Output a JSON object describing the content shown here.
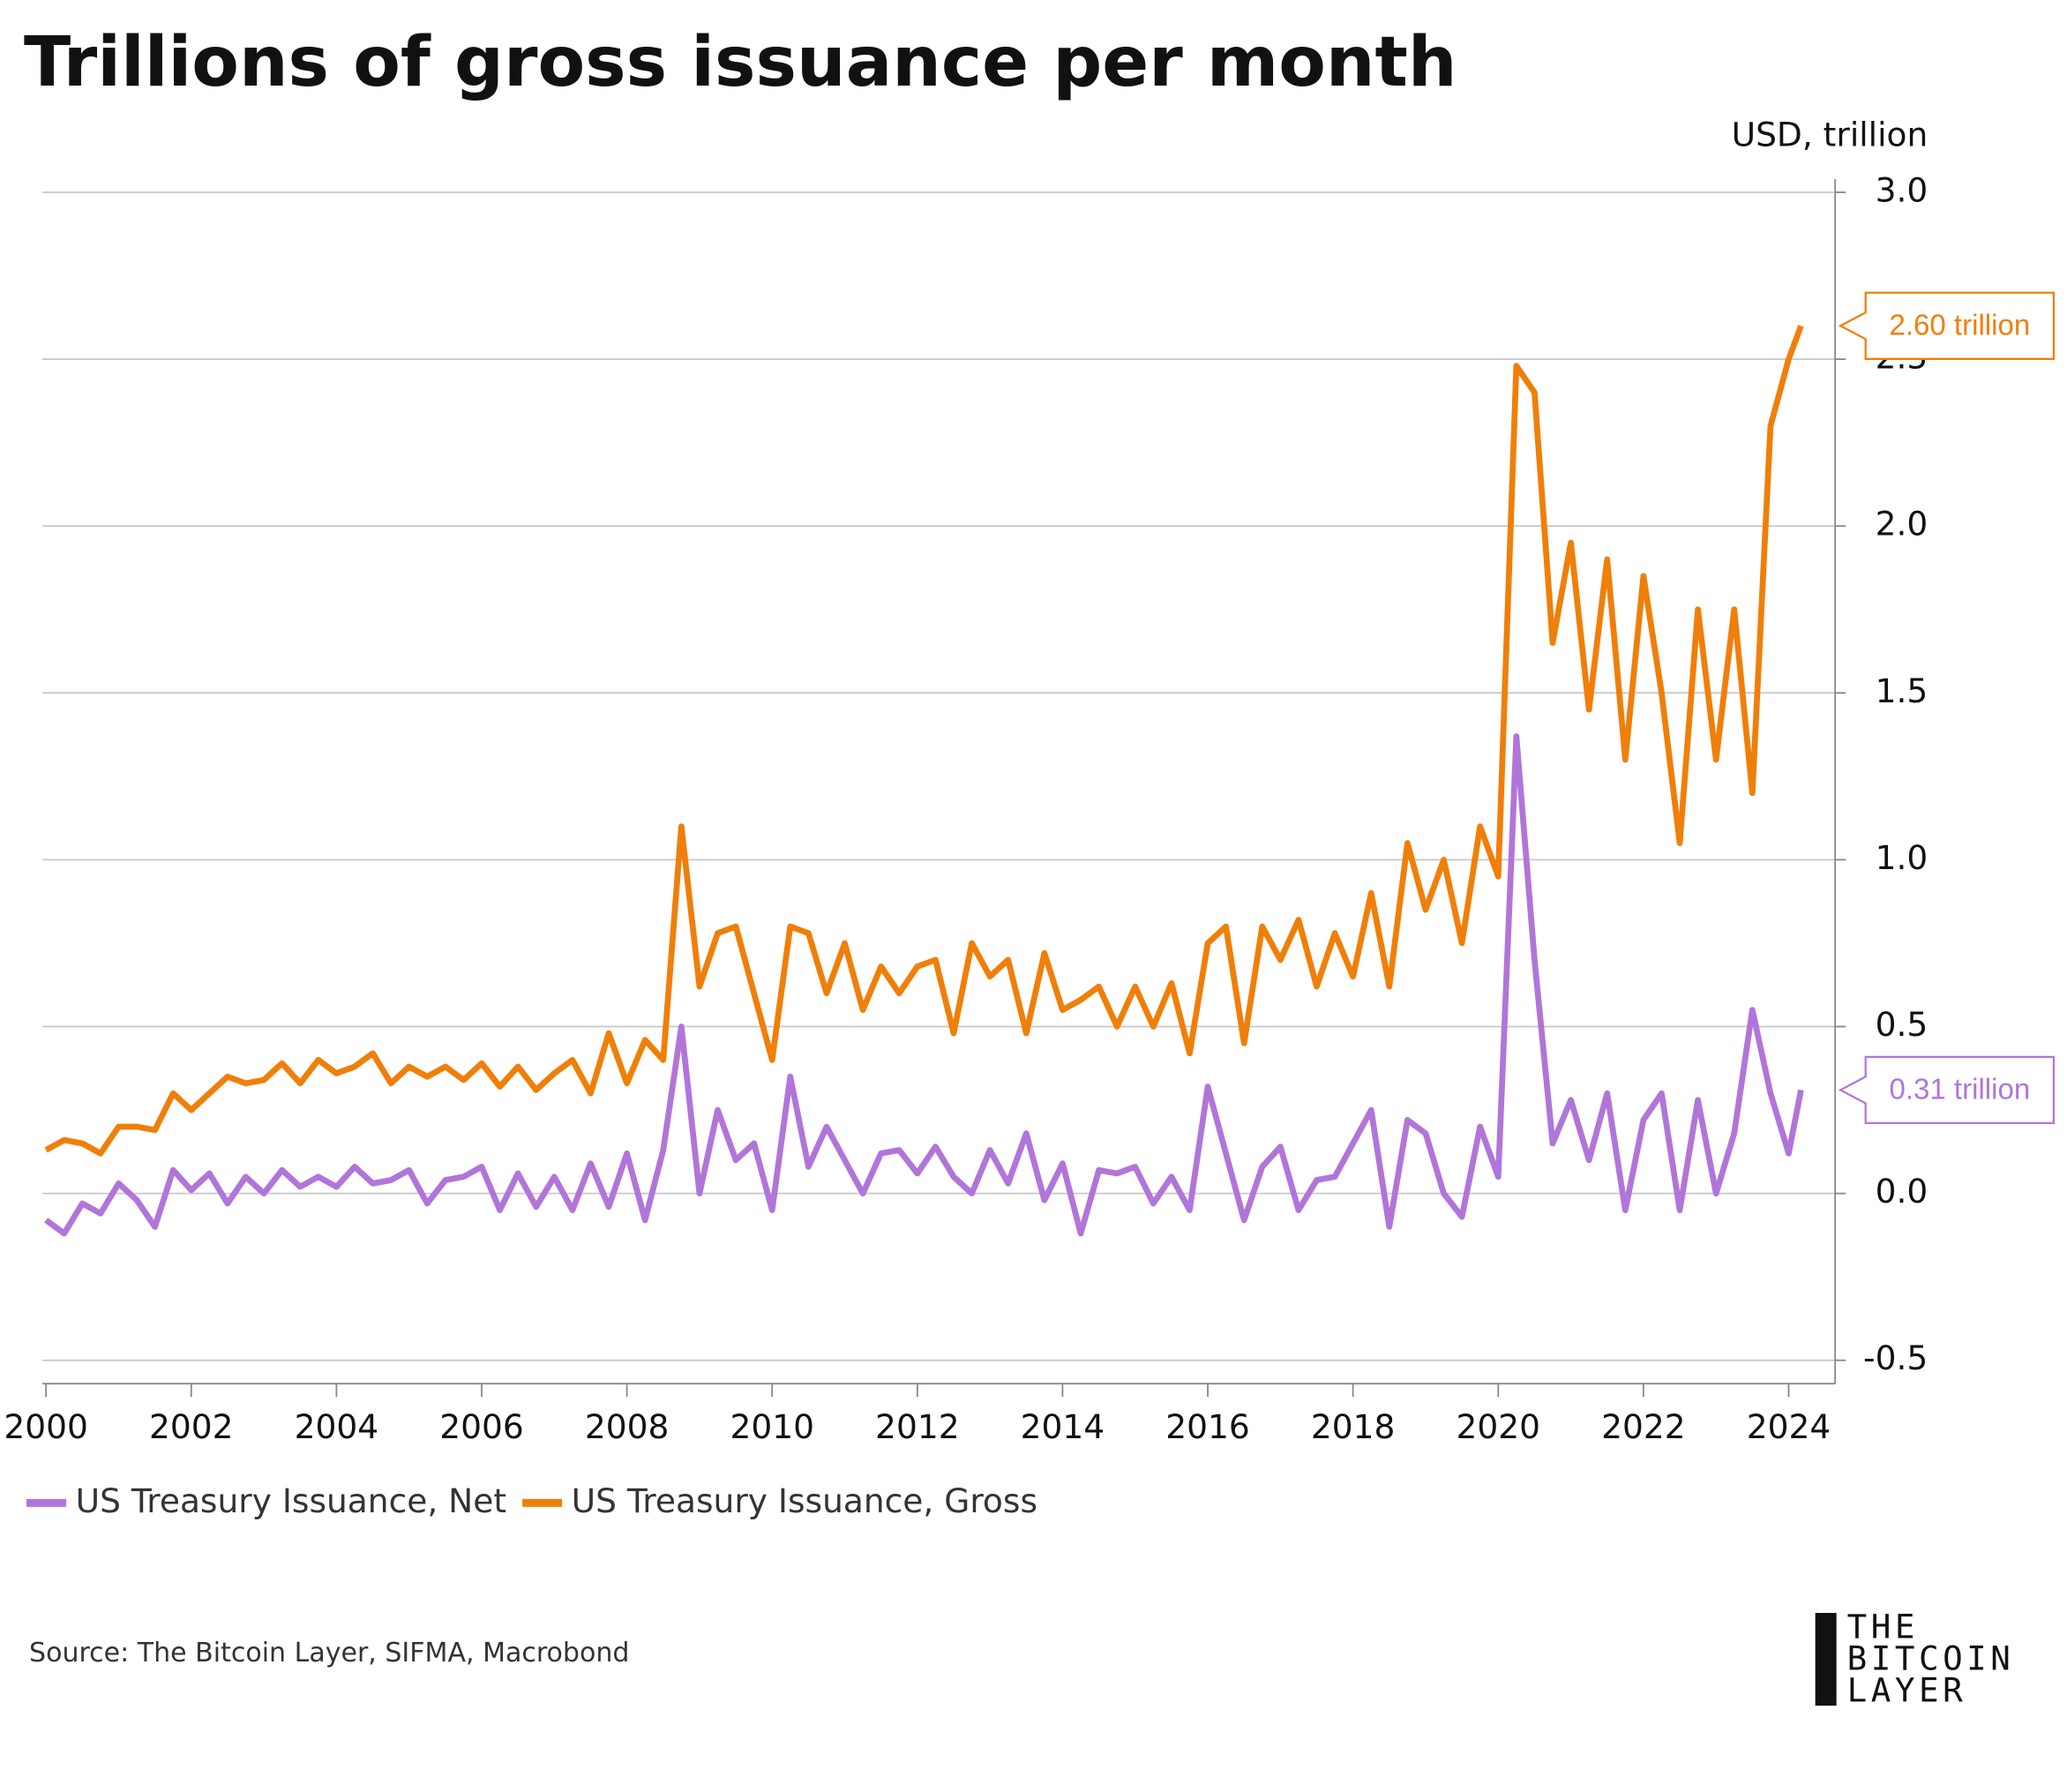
{
  "chart_data": {
    "type": "line",
    "title": "Trillions of gross issuance per month",
    "y_unit": "USD, trillion",
    "x": [
      2000,
      2000.25,
      2000.5,
      2000.75,
      2001,
      2001.25,
      2001.5,
      2001.75,
      2002,
      2002.25,
      2002.5,
      2002.75,
      2003,
      2003.25,
      2003.5,
      2003.75,
      2004,
      2004.25,
      2004.5,
      2004.75,
      2005,
      2005.25,
      2005.5,
      2005.75,
      2006,
      2006.25,
      2006.5,
      2006.75,
      2007,
      2007.25,
      2007.5,
      2007.75,
      2008,
      2008.25,
      2008.5,
      2008.75,
      2009,
      2009.25,
      2009.5,
      2009.75,
      2010,
      2010.25,
      2010.5,
      2010.75,
      2011,
      2011.25,
      2011.5,
      2011.75,
      2012,
      2012.25,
      2012.5,
      2012.75,
      2013,
      2013.25,
      2013.5,
      2013.75,
      2014,
      2014.25,
      2014.5,
      2014.75,
      2015,
      2015.25,
      2015.5,
      2015.75,
      2016,
      2016.25,
      2016.5,
      2016.75,
      2017,
      2017.25,
      2017.5,
      2017.75,
      2018,
      2018.25,
      2018.5,
      2018.75,
      2019,
      2019.25,
      2019.5,
      2019.75,
      2020,
      2020.25,
      2020.5,
      2020.75,
      2021,
      2021.25,
      2021.5,
      2021.75,
      2022,
      2022.25,
      2022.5,
      2022.75,
      2023,
      2023.25,
      2023.5,
      2023.75,
      2024,
      2024.17
    ],
    "series": [
      {
        "name": "US Treasury Issuance, Net",
        "color": "#b175d9",
        "last_label": "0.31 trillion",
        "values": [
          -0.08,
          -0.12,
          -0.03,
          -0.06,
          0.03,
          -0.02,
          -0.1,
          0.07,
          0.01,
          0.06,
          -0.03,
          0.05,
          0,
          0.07,
          0.02,
          0.05,
          0.02,
          0.08,
          0.03,
          0.04,
          0.07,
          -0.03,
          0.04,
          0.05,
          0.08,
          -0.05,
          0.06,
          -0.04,
          0.05,
          -0.05,
          0.09,
          -0.04,
          0.12,
          -0.08,
          0.13,
          0.5,
          0,
          0.25,
          0.1,
          0.15,
          -0.05,
          0.35,
          0.08,
          0.2,
          0.1,
          0,
          0.12,
          0.13,
          0.06,
          0.14,
          0.05,
          0,
          0.13,
          0.03,
          0.18,
          -0.02,
          0.09,
          -0.12,
          0.07,
          0.06,
          0.08,
          -0.03,
          0.05,
          -0.05,
          0.32,
          0.12,
          -0.08,
          0.08,
          0.14,
          -0.05,
          0.04,
          0.05,
          0.15,
          0.25,
          -0.1,
          0.22,
          0.18,
          0,
          -0.07,
          0.2,
          0.05,
          1.37,
          0.7,
          0.15,
          0.28,
          0.1,
          0.3,
          -0.05,
          0.22,
          0.3,
          -0.05,
          0.28,
          0,
          0.18,
          0.55,
          0.3,
          0.12,
          0.31
        ]
      },
      {
        "name": "US Treasury Issuance, Gross",
        "color": "#f07f09",
        "last_label": "2.60 trillion",
        "values": [
          0.13,
          0.16,
          0.15,
          0.12,
          0.2,
          0.2,
          0.19,
          0.3,
          0.25,
          0.3,
          0.35,
          0.33,
          0.34,
          0.39,
          0.33,
          0.4,
          0.36,
          0.38,
          0.42,
          0.33,
          0.38,
          0.35,
          0.38,
          0.34,
          0.39,
          0.32,
          0.38,
          0.31,
          0.36,
          0.4,
          0.3,
          0.48,
          0.33,
          0.46,
          0.4,
          1.1,
          0.62,
          0.78,
          0.8,
          0.6,
          0.4,
          0.8,
          0.78,
          0.6,
          0.75,
          0.55,
          0.68,
          0.6,
          0.68,
          0.7,
          0.48,
          0.75,
          0.65,
          0.7,
          0.48,
          0.72,
          0.55,
          0.58,
          0.62,
          0.5,
          0.62,
          0.5,
          0.63,
          0.42,
          0.75,
          0.8,
          0.45,
          0.8,
          0.7,
          0.82,
          0.62,
          0.78,
          0.65,
          0.9,
          0.62,
          1.05,
          0.85,
          1.0,
          0.75,
          1.1,
          0.95,
          2.48,
          2.4,
          1.65,
          1.95,
          1.45,
          1.9,
          1.3,
          1.85,
          1.5,
          1.05,
          1.75,
          1.3,
          1.75,
          1.2,
          2.3,
          2.5,
          2.6
        ]
      }
    ],
    "xlim": [
      1999.95,
      2024.64
    ],
    "xticks": [
      2000,
      2002,
      2004,
      2006,
      2008,
      2010,
      2012,
      2014,
      2016,
      2018,
      2020,
      2022,
      2024
    ],
    "ylim": [
      -0.57,
      3.0
    ],
    "yticks": [
      {
        "value": -0.5,
        "label": "-0.5"
      },
      {
        "value": 0,
        "label": "0.0"
      },
      {
        "value": 0.5,
        "label": "0.5"
      },
      {
        "value": 1,
        "label": "1.0"
      },
      {
        "value": 1.5,
        "label": "1.5"
      },
      {
        "value": 2,
        "label": "2.0"
      },
      {
        "value": 2.5,
        "label": "2.5"
      },
      {
        "value": 3,
        "label": "3.0"
      }
    ],
    "grid": true
  },
  "source": "Source: The Bitcoin Layer, SIFMA, Macrobond",
  "logo": [
    "THE",
    "BITCOIN",
    "LAYER"
  ]
}
